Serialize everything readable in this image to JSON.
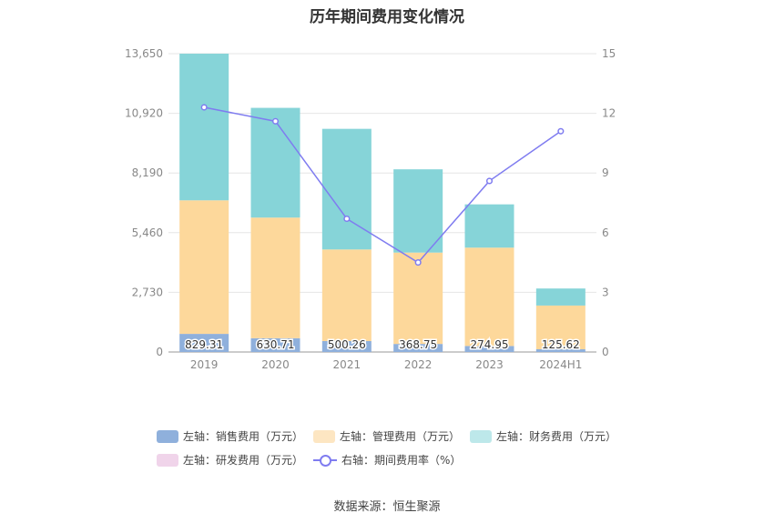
{
  "title": "历年期间费用变化情况",
  "source": "数据来源：恒生聚源",
  "chart_data": {
    "type": "bar",
    "stacked": true,
    "title": "历年期间费用变化情况",
    "categories": [
      "2019",
      "2020",
      "2021",
      "2022",
      "2023",
      "2024H1"
    ],
    "left_axis": {
      "ticks": [
        "0",
        "2,730",
        "5,460",
        "8,190",
        "10,920",
        "13,650"
      ],
      "ylim": [
        0,
        13650
      ]
    },
    "right_axis": {
      "ticks": [
        "0",
        "3",
        "6",
        "9",
        "12",
        "15"
      ],
      "ylim": [
        0,
        15
      ]
    },
    "grid": true,
    "legend_position": "bottom",
    "series": [
      {
        "name": "左轴：销售费用（万元）",
        "axis": "left",
        "color": "#8fb0dc",
        "values": [
          829.31,
          630.71,
          500.26,
          368.75,
          274.95,
          125.62
        ],
        "labels": [
          "829.31",
          "630.71",
          "500.26",
          "368.75",
          "274.95",
          "125.62"
        ]
      },
      {
        "name": "左轴：管理费用（万元）",
        "axis": "left",
        "color": "#fdd89b",
        "values": [
          6110,
          5520,
          4190,
          4180,
          4500,
          2000
        ]
      },
      {
        "name": "左轴：财务费用（万元）",
        "axis": "left",
        "color": "#86d4d8",
        "values": [
          6710,
          5020,
          5520,
          3810,
          1980,
          780
        ]
      },
      {
        "name": "左轴：研发费用（万元）",
        "axis": "left",
        "color": "#f0d4ea",
        "values": [
          0,
          0,
          0,
          0,
          0,
          0
        ]
      },
      {
        "name": "右轴：期间费用率（%）",
        "axis": "right",
        "type": "line",
        "color": "#7f7cf0",
        "values": [
          12.3,
          11.6,
          6.7,
          4.5,
          8.6,
          11.1
        ]
      }
    ]
  }
}
